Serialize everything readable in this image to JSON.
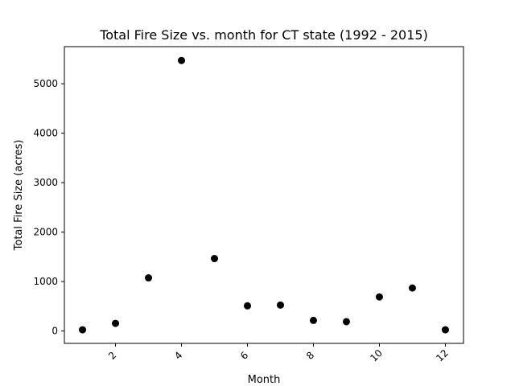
{
  "chart_data": {
    "type": "scatter",
    "title": "Total Fire Size vs. month for CT state (1992 - 2015)",
    "xlabel": "Month",
    "ylabel": "Total Fire Size (acres)",
    "xlim": [
      0.45,
      12.55
    ],
    "ylim": [
      -250,
      5750
    ],
    "xticks": [
      2,
      4,
      6,
      8,
      10,
      12
    ],
    "xtick_labels": [
      "2",
      "4",
      "6",
      "8",
      "10",
      "12"
    ],
    "xtick_rotation": 45,
    "yticks": [
      0,
      1000,
      2000,
      3000,
      4000,
      5000
    ],
    "ytick_labels": [
      "0",
      "1000",
      "2000",
      "3000",
      "4000",
      "5000"
    ],
    "grid": false,
    "marker_color": "#000000",
    "points": [
      {
        "x": 1,
        "y": 25
      },
      {
        "x": 2,
        "y": 155
      },
      {
        "x": 3,
        "y": 1075
      },
      {
        "x": 4,
        "y": 5470
      },
      {
        "x": 5,
        "y": 1465
      },
      {
        "x": 6,
        "y": 510
      },
      {
        "x": 7,
        "y": 525
      },
      {
        "x": 8,
        "y": 215
      },
      {
        "x": 9,
        "y": 190
      },
      {
        "x": 10,
        "y": 690
      },
      {
        "x": 11,
        "y": 870
      },
      {
        "x": 12,
        "y": 25
      }
    ]
  }
}
